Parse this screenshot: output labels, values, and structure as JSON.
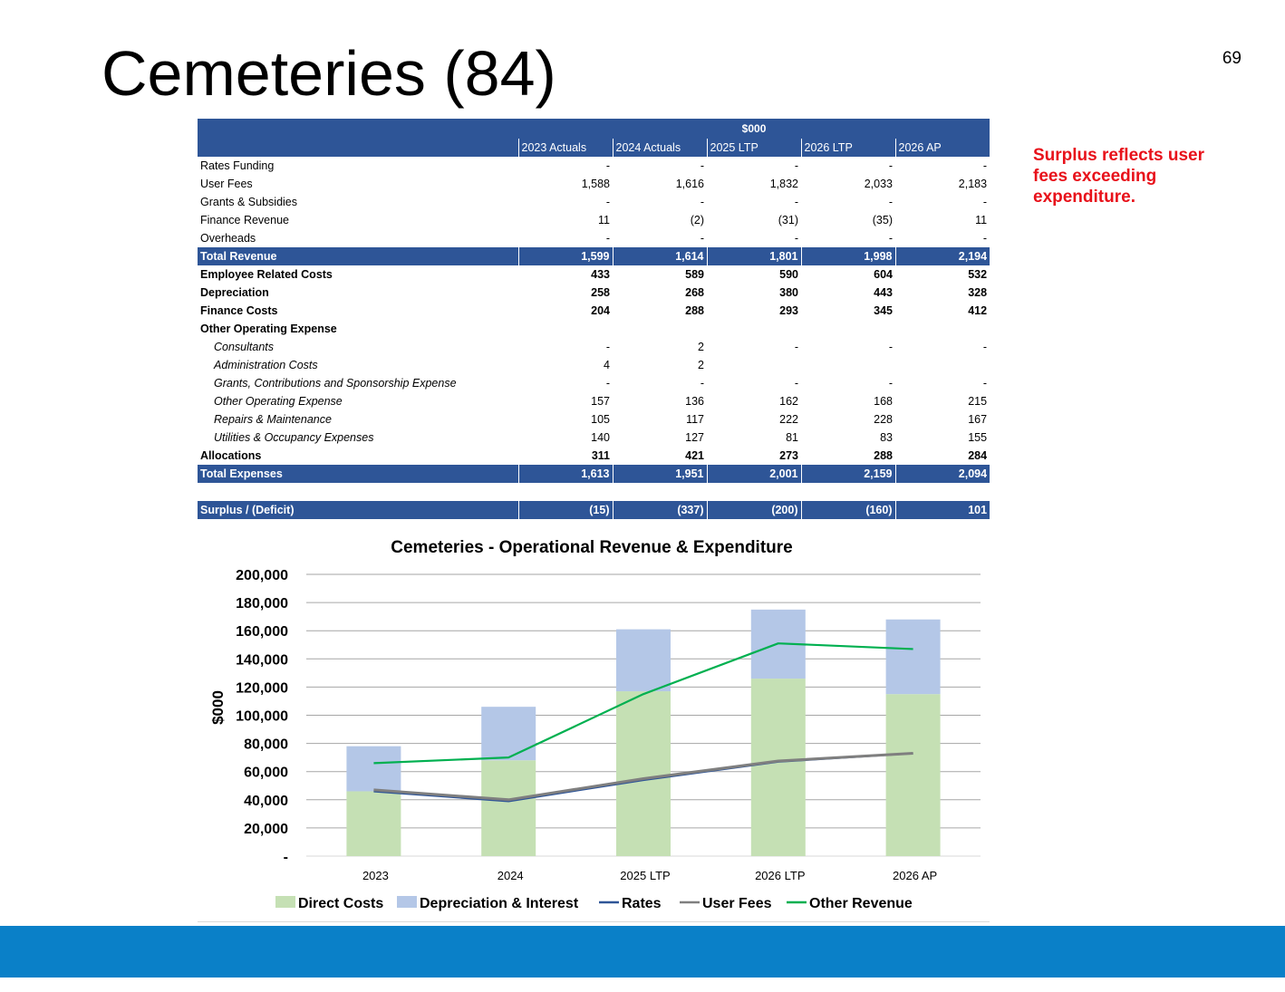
{
  "slide": {
    "title": "Cemeteries (84)",
    "page_number": "69",
    "callout": "Surplus reflects user fees exceeding expenditure."
  },
  "table": {
    "unit_header": "$000",
    "columns": [
      "",
      "2023 Actuals",
      "2024 Actuals",
      "2025 LTP",
      "2026 LTP",
      "2026 AP"
    ],
    "rows": [
      {
        "label": "Rates Funding",
        "values": [
          "-",
          "-",
          "-",
          "-",
          "-"
        ],
        "style": "normal"
      },
      {
        "label": "User Fees",
        "values": [
          "1,588",
          "1,616",
          "1,832",
          "2,033",
          "2,183"
        ],
        "style": "normal"
      },
      {
        "label": "Grants & Subsidies",
        "values": [
          "-",
          "-",
          "-",
          "-",
          "-"
        ],
        "style": "normal"
      },
      {
        "label": "Finance Revenue",
        "values": [
          "11",
          "(2)",
          "(31)",
          "(35)",
          "11"
        ],
        "style": "normal"
      },
      {
        "label": "Overheads",
        "values": [
          "-",
          "-",
          "-",
          "-",
          "-"
        ],
        "style": "normal"
      },
      {
        "label": "Total Revenue",
        "values": [
          "1,599",
          "1,614",
          "1,801",
          "1,998",
          "2,194"
        ],
        "style": "total"
      },
      {
        "label": "Employee Related Costs",
        "values": [
          "433",
          "589",
          "590",
          "604",
          "532"
        ],
        "style": "bold"
      },
      {
        "label": "Depreciation",
        "values": [
          "258",
          "268",
          "380",
          "443",
          "328"
        ],
        "style": "bold"
      },
      {
        "label": "Finance Costs",
        "values": [
          "204",
          "288",
          "293",
          "345",
          "412"
        ],
        "style": "bold"
      },
      {
        "label": "Other Operating  Expense",
        "values": [
          "",
          "",
          "",
          "",
          ""
        ],
        "style": "bold"
      },
      {
        "label": "Consultants",
        "values": [
          "-",
          "2",
          "-",
          "-",
          "-"
        ],
        "style": "sub"
      },
      {
        "label": "Administration Costs",
        "values": [
          "4",
          "2",
          "",
          "",
          ""
        ],
        "style": "sub"
      },
      {
        "label": "Grants, Contributions and Sponsorship Expense",
        "values": [
          "-",
          "-",
          "-",
          "-",
          "-"
        ],
        "style": "sub"
      },
      {
        "label": "Other Operating Expense",
        "values": [
          "157",
          "136",
          "162",
          "168",
          "215"
        ],
        "style": "sub"
      },
      {
        "label": "Repairs & Maintenance",
        "values": [
          "105",
          "117",
          "222",
          "228",
          "167"
        ],
        "style": "sub"
      },
      {
        "label": "Utilities & Occupancy Expenses",
        "values": [
          "140",
          "127",
          "81",
          "83",
          "155"
        ],
        "style": "sub"
      },
      {
        "label": "Allocations",
        "values": [
          "311",
          "421",
          "273",
          "288",
          "284"
        ],
        "style": "bold"
      },
      {
        "label": "Total Expenses",
        "values": [
          "1,613",
          "1,951",
          "2,001",
          "2,159",
          "2,094"
        ],
        "style": "total"
      },
      {
        "label": "",
        "values": [
          "",
          "",
          "",
          "",
          ""
        ],
        "style": "spacer"
      },
      {
        "label": "Surplus / (Deficit)",
        "values": [
          "(15)",
          "(337)",
          "(200)",
          "(160)",
          "101"
        ],
        "style": "total"
      }
    ]
  },
  "chart_data": {
    "type": "bar",
    "title": "Cemeteries - Operational Revenue & Expenditure",
    "xlabel": "",
    "ylabel": "$000",
    "categories": [
      "2023",
      "2024",
      "2025 LTP",
      "2026 LTP",
      "2026 AP"
    ],
    "ylim": [
      0,
      200000
    ],
    "yticks": [
      0,
      20000,
      40000,
      60000,
      80000,
      100000,
      120000,
      140000,
      160000,
      180000,
      200000
    ],
    "ytick_labels": [
      "-",
      "20,000",
      "40,000",
      "60,000",
      "80,000",
      "100,000",
      "120,000",
      "140,000",
      "160,000",
      "180,000",
      "200,000"
    ],
    "stacked": true,
    "grid": true,
    "legend_position": "bottom",
    "bar_series": [
      {
        "name": "Direct Costs",
        "color": "#c5e0b4",
        "values": [
          46000,
          68000,
          117000,
          126000,
          115000
        ]
      },
      {
        "name": "Depreciation & Interest",
        "color": "#b4c7e7",
        "values": [
          32000,
          38000,
          44000,
          49000,
          53000
        ]
      }
    ],
    "line_series": [
      {
        "name": "Rates",
        "color": "#2f5597",
        "values": [
          46000,
          39000,
          54000,
          67000,
          73000
        ]
      },
      {
        "name": "User Fees",
        "color": "#7f7f7f",
        "values": [
          47000,
          40000,
          55000,
          67500,
          73000
        ]
      },
      {
        "name": "Other Revenue",
        "color": "#00b050",
        "values": [
          66000,
          70000,
          115000,
          151000,
          147000
        ]
      }
    ]
  },
  "colors": {
    "table_header": "#2e5597",
    "callout_text": "#e8111a",
    "footer_bar": "#0a80c8"
  }
}
